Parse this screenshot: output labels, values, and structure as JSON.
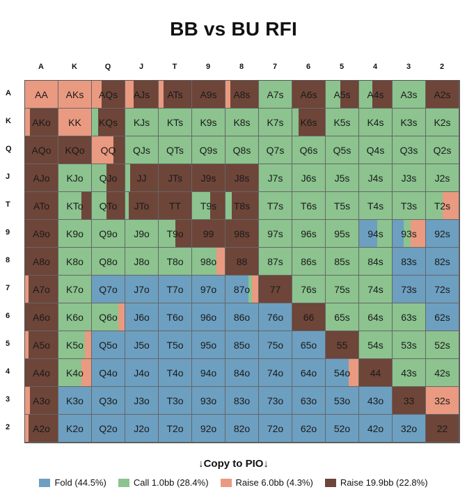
{
  "page": {
    "title": "BB vs BU RFI",
    "copy_label": "↓Copy to PIO↓"
  },
  "colors": {
    "fold": "#6d9fc0",
    "call": "#8cc38f",
    "raise6": "#e99a80",
    "raise19": "#6e4539"
  },
  "legend": [
    {
      "key": "fold",
      "label": "Fold (44.5%)"
    },
    {
      "key": "call",
      "label": "Call 1.0bb (28.4%)"
    },
    {
      "key": "raise6",
      "label": "Raise 6.0bb (4.3%)"
    },
    {
      "key": "raise19",
      "label": "Raise 19.9bb (22.8%)"
    }
  ],
  "chart_data": {
    "type": "heatmap",
    "title": "BB vs BU RFI",
    "ranks": [
      "A",
      "K",
      "Q",
      "J",
      "T",
      "9",
      "8",
      "7",
      "6",
      "5",
      "4",
      "3",
      "2"
    ],
    "actions": [
      "Fold",
      "Call 1.0bb",
      "Raise 6.0bb",
      "Raise 19.9bb"
    ],
    "action_keys": [
      "fold",
      "call",
      "raise6",
      "raise19"
    ],
    "overall_frequencies": {
      "fold": 44.5,
      "call": 28.4,
      "raise6": 4.3,
      "raise19": 22.8
    },
    "hands": [
      [
        "AA",
        "AKs",
        "AQs",
        "AJs",
        "ATs",
        "A9s",
        "A8s",
        "A7s",
        "A6s",
        "A5s",
        "A4s",
        "A3s",
        "A2s"
      ],
      [
        "AKo",
        "KK",
        "KQs",
        "KJs",
        "KTs",
        "K9s",
        "K8s",
        "K7s",
        "K6s",
        "K5s",
        "K4s",
        "K3s",
        "K2s"
      ],
      [
        "AQo",
        "KQo",
        "QQ",
        "QJs",
        "QTs",
        "Q9s",
        "Q8s",
        "Q7s",
        "Q6s",
        "Q5s",
        "Q4s",
        "Q3s",
        "Q2s"
      ],
      [
        "AJo",
        "KJo",
        "QJo",
        "JJ",
        "JTs",
        "J9s",
        "J8s",
        "J7s",
        "J6s",
        "J5s",
        "J4s",
        "J3s",
        "J2s"
      ],
      [
        "ATo",
        "KTo",
        "QTo",
        "JTo",
        "TT",
        "T9s",
        "T8s",
        "T7s",
        "T6s",
        "T5s",
        "T4s",
        "T3s",
        "T2s"
      ],
      [
        "A9o",
        "K9o",
        "Q9o",
        "J9o",
        "T9o",
        "99",
        "98s",
        "97s",
        "96s",
        "95s",
        "94s",
        "93s",
        "92s"
      ],
      [
        "A8o",
        "K8o",
        "Q8o",
        "J8o",
        "T8o",
        "98o",
        "88",
        "87s",
        "86s",
        "85s",
        "84s",
        "83s",
        "82s"
      ],
      [
        "A7o",
        "K7o",
        "Q7o",
        "J7o",
        "T7o",
        "97o",
        "87o",
        "77",
        "76s",
        "75s",
        "74s",
        "73s",
        "72s"
      ],
      [
        "A6o",
        "K6o",
        "Q6o",
        "J6o",
        "T6o",
        "96o",
        "86o",
        "76o",
        "66",
        "65s",
        "64s",
        "63s",
        "62s"
      ],
      [
        "A5o",
        "K5o",
        "Q5o",
        "J5o",
        "T5o",
        "95o",
        "85o",
        "75o",
        "65o",
        "55",
        "54s",
        "53s",
        "52s"
      ],
      [
        "A4o",
        "K4o",
        "Q4o",
        "J4o",
        "T4o",
        "94o",
        "84o",
        "74o",
        "64o",
        "54o",
        "44",
        "43s",
        "42s"
      ],
      [
        "A3o",
        "K3o",
        "Q3o",
        "J3o",
        "T3o",
        "93o",
        "83o",
        "73o",
        "63o",
        "53o",
        "43o",
        "33",
        "32s"
      ],
      [
        "A2o",
        "K2o",
        "Q2o",
        "J2o",
        "T2o",
        "92o",
        "82o",
        "72o",
        "62o",
        "52o",
        "42o",
        "32o",
        "22"
      ]
    ],
    "frequencies": [
      [
        [
          0,
          0,
          100,
          0
        ],
        [
          0,
          0,
          100,
          0
        ],
        [
          0,
          0,
          30,
          70
        ],
        [
          0,
          0,
          25,
          75
        ],
        [
          0,
          0,
          15,
          85
        ],
        [
          0,
          0,
          0,
          100
        ],
        [
          0,
          0,
          15,
          85
        ],
        [
          0,
          100,
          0,
          0
        ],
        [
          0,
          0,
          0,
          100
        ],
        [
          0,
          45,
          0,
          55
        ],
        [
          0,
          40,
          0,
          60
        ],
        [
          0,
          100,
          0,
          0
        ],
        [
          0,
          0,
          0,
          100
        ]
      ],
      [
        [
          0,
          0,
          15,
          85
        ],
        [
          0,
          0,
          100,
          0
        ],
        [
          0,
          20,
          0,
          80
        ],
        [
          0,
          100,
          0,
          0
        ],
        [
          0,
          100,
          0,
          0
        ],
        [
          0,
          100,
          0,
          0
        ],
        [
          0,
          100,
          0,
          0
        ],
        [
          0,
          100,
          0,
          0
        ],
        [
          0,
          20,
          0,
          80
        ],
        [
          0,
          100,
          0,
          0
        ],
        [
          0,
          100,
          0,
          0
        ],
        [
          0,
          100,
          0,
          0
        ],
        [
          0,
          100,
          0,
          0
        ]
      ],
      [
        [
          0,
          0,
          0,
          100
        ],
        [
          0,
          0,
          0,
          100
        ],
        [
          0,
          0,
          65,
          35
        ],
        [
          0,
          100,
          0,
          0
        ],
        [
          0,
          100,
          0,
          0
        ],
        [
          0,
          100,
          0,
          0
        ],
        [
          0,
          100,
          0,
          0
        ],
        [
          0,
          100,
          0,
          0
        ],
        [
          0,
          100,
          0,
          0
        ],
        [
          0,
          100,
          0,
          0
        ],
        [
          0,
          100,
          0,
          0
        ],
        [
          0,
          100,
          0,
          0
        ],
        [
          0,
          100,
          0,
          0
        ]
      ],
      [
        [
          0,
          0,
          0,
          100
        ],
        [
          0,
          100,
          0,
          0
        ],
        [
          0,
          45,
          0,
          55
        ],
        [
          0,
          15,
          0,
          85
        ],
        [
          0,
          0,
          0,
          100
        ],
        [
          0,
          0,
          0,
          100
        ],
        [
          0,
          0,
          0,
          100
        ],
        [
          0,
          100,
          0,
          0
        ],
        [
          0,
          100,
          0,
          0
        ],
        [
          0,
          100,
          0,
          0
        ],
        [
          0,
          100,
          0,
          0
        ],
        [
          0,
          100,
          0,
          0
        ],
        [
          0,
          100,
          0,
          0
        ]
      ],
      [
        [
          0,
          0,
          0,
          100
        ],
        [
          0,
          70,
          0,
          30
        ],
        [
          0,
          45,
          0,
          55
        ],
        [
          0,
          10,
          0,
          90
        ],
        [
          0,
          0,
          0,
          100
        ],
        [
          0,
          55,
          0,
          45
        ],
        [
          0,
          20,
          0,
          80
        ],
        [
          0,
          100,
          0,
          0
        ],
        [
          0,
          100,
          0,
          0
        ],
        [
          0,
          100,
          0,
          0
        ],
        [
          0,
          100,
          0,
          0
        ],
        [
          0,
          100,
          0,
          0
        ],
        [
          0,
          50,
          50,
          0
        ]
      ],
      [
        [
          0,
          0,
          0,
          100
        ],
        [
          0,
          100,
          0,
          0
        ],
        [
          0,
          100,
          0,
          0
        ],
        [
          0,
          100,
          0,
          0
        ],
        [
          0,
          50,
          0,
          50
        ],
        [
          0,
          0,
          0,
          100
        ],
        [
          0,
          0,
          0,
          100
        ],
        [
          0,
          100,
          0,
          0
        ],
        [
          0,
          100,
          0,
          0
        ],
        [
          0,
          100,
          0,
          0
        ],
        [
          55,
          45,
          0,
          0
        ],
        [
          35,
          20,
          45,
          0
        ],
        [
          100,
          0,
          0,
          0
        ]
      ],
      [
        [
          0,
          0,
          0,
          100
        ],
        [
          0,
          100,
          0,
          0
        ],
        [
          0,
          100,
          0,
          0
        ],
        [
          0,
          100,
          0,
          0
        ],
        [
          0,
          100,
          0,
          0
        ],
        [
          0,
          75,
          25,
          0
        ],
        [
          0,
          0,
          0,
          100
        ],
        [
          0,
          100,
          0,
          0
        ],
        [
          0,
          100,
          0,
          0
        ],
        [
          0,
          100,
          0,
          0
        ],
        [
          0,
          100,
          0,
          0
        ],
        [
          100,
          0,
          0,
          0
        ],
        [
          100,
          0,
          0,
          0
        ]
      ],
      [
        [
          0,
          0,
          10,
          90
        ],
        [
          0,
          100,
          0,
          0
        ],
        [
          100,
          0,
          0,
          0
        ],
        [
          100,
          0,
          0,
          0
        ],
        [
          100,
          0,
          0,
          0
        ],
        [
          100,
          0,
          0,
          0
        ],
        [
          70,
          10,
          20,
          0
        ],
        [
          0,
          0,
          0,
          100
        ],
        [
          0,
          100,
          0,
          0
        ],
        [
          0,
          100,
          0,
          0
        ],
        [
          0,
          100,
          0,
          0
        ],
        [
          100,
          0,
          0,
          0
        ],
        [
          100,
          0,
          0,
          0
        ]
      ],
      [
        [
          0,
          0,
          0,
          100
        ],
        [
          0,
          100,
          0,
          0
        ],
        [
          0,
          80,
          20,
          0
        ],
        [
          100,
          0,
          0,
          0
        ],
        [
          100,
          0,
          0,
          0
        ],
        [
          100,
          0,
          0,
          0
        ],
        [
          100,
          0,
          0,
          0
        ],
        [
          100,
          0,
          0,
          0
        ],
        [
          0,
          0,
          0,
          100
        ],
        [
          0,
          100,
          0,
          0
        ],
        [
          0,
          100,
          0,
          0
        ],
        [
          0,
          100,
          0,
          0
        ],
        [
          100,
          0,
          0,
          0
        ]
      ],
      [
        [
          0,
          0,
          10,
          90
        ],
        [
          0,
          80,
          20,
          0
        ],
        [
          100,
          0,
          0,
          0
        ],
        [
          100,
          0,
          0,
          0
        ],
        [
          100,
          0,
          0,
          0
        ],
        [
          100,
          0,
          0,
          0
        ],
        [
          100,
          0,
          0,
          0
        ],
        [
          100,
          0,
          0,
          0
        ],
        [
          100,
          0,
          0,
          0
        ],
        [
          0,
          0,
          0,
          100
        ],
        [
          0,
          100,
          0,
          0
        ],
        [
          0,
          100,
          0,
          0
        ],
        [
          0,
          100,
          0,
          0
        ]
      ],
      [
        [
          0,
          0,
          0,
          100
        ],
        [
          0,
          70,
          30,
          0
        ],
        [
          100,
          0,
          0,
          0
        ],
        [
          100,
          0,
          0,
          0
        ],
        [
          100,
          0,
          0,
          0
        ],
        [
          100,
          0,
          0,
          0
        ],
        [
          100,
          0,
          0,
          0
        ],
        [
          100,
          0,
          0,
          0
        ],
        [
          100,
          0,
          0,
          0
        ],
        [
          70,
          0,
          30,
          0
        ],
        [
          0,
          0,
          0,
          100
        ],
        [
          0,
          100,
          0,
          0
        ],
        [
          0,
          100,
          0,
          0
        ]
      ],
      [
        [
          0,
          0,
          15,
          85
        ],
        [
          100,
          0,
          0,
          0
        ],
        [
          100,
          0,
          0,
          0
        ],
        [
          100,
          0,
          0,
          0
        ],
        [
          100,
          0,
          0,
          0
        ],
        [
          100,
          0,
          0,
          0
        ],
        [
          100,
          0,
          0,
          0
        ],
        [
          100,
          0,
          0,
          0
        ],
        [
          100,
          0,
          0,
          0
        ],
        [
          100,
          0,
          0,
          0
        ],
        [
          100,
          0,
          0,
          0
        ],
        [
          0,
          0,
          0,
          100
        ],
        [
          0,
          0,
          100,
          0
        ]
      ],
      [
        [
          0,
          0,
          10,
          90
        ],
        [
          100,
          0,
          0,
          0
        ],
        [
          100,
          0,
          0,
          0
        ],
        [
          100,
          0,
          0,
          0
        ],
        [
          100,
          0,
          0,
          0
        ],
        [
          100,
          0,
          0,
          0
        ],
        [
          100,
          0,
          0,
          0
        ],
        [
          100,
          0,
          0,
          0
        ],
        [
          100,
          0,
          0,
          0
        ],
        [
          100,
          0,
          0,
          0
        ],
        [
          100,
          0,
          0,
          0
        ],
        [
          100,
          0,
          0,
          0
        ],
        [
          0,
          0,
          0,
          100
        ]
      ]
    ]
  }
}
